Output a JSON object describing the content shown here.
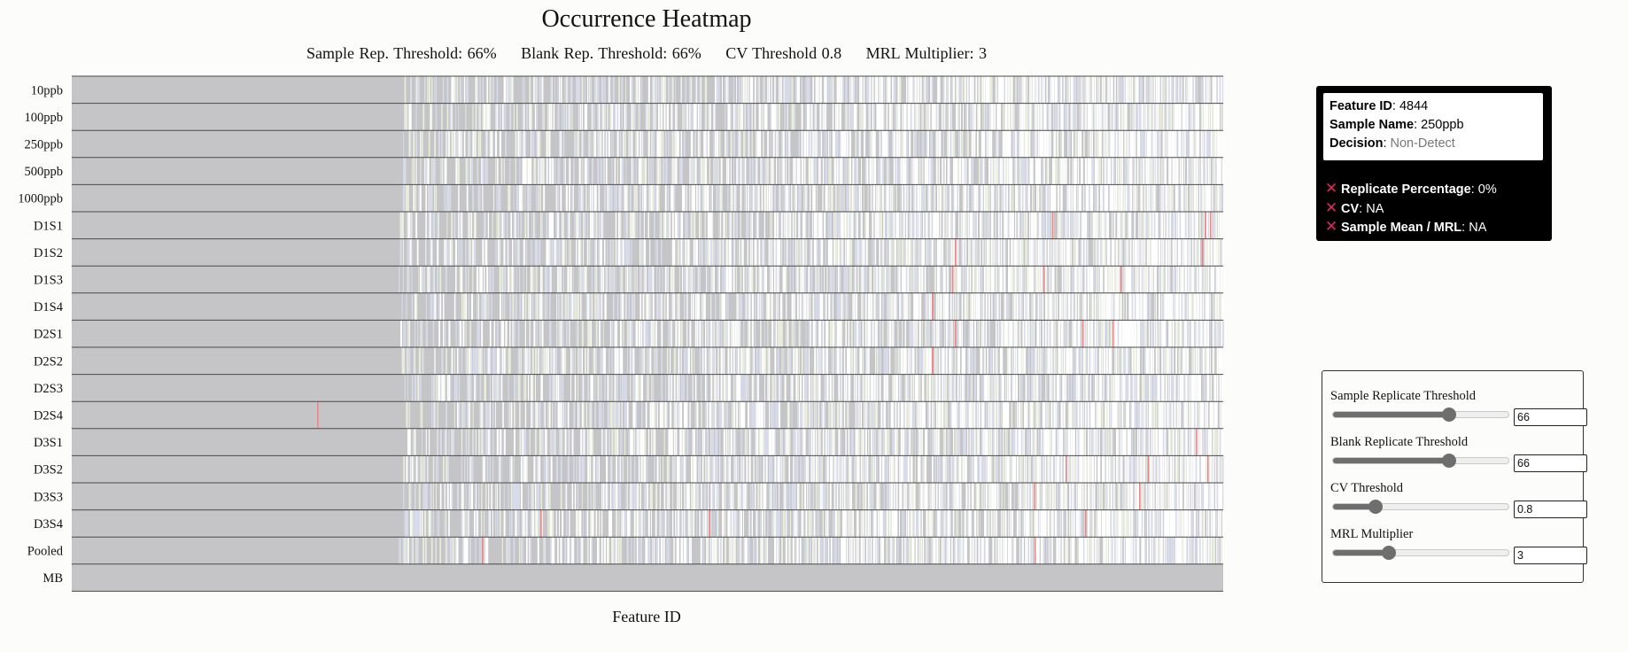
{
  "header": {
    "title": "Occurrence Heatmap",
    "subtitle_items": [
      "Sample Rep. Threshold: 66%",
      "Blank Rep. Threshold: 66%",
      "CV Threshold 0.8",
      "MRL Multiplier: 3"
    ]
  },
  "chart_data": {
    "type": "heatmap",
    "title": "Occurrence Heatmap",
    "xlabel": "Feature ID",
    "ylabel": "",
    "rows": [
      "10ppb",
      "100ppb",
      "250ppb",
      "500ppb",
      "1000ppb",
      "D1S1",
      "D1S2",
      "D1S3",
      "D1S4",
      "D2S1",
      "D2S2",
      "D2S3",
      "D2S4",
      "D3S1",
      "D3S2",
      "D3S3",
      "D3S4",
      "Pooled",
      "MB"
    ],
    "grid": true,
    "legend": "none",
    "colors": {
      "non_detect": "#c5c5c7",
      "detect_pass": "#ffffff",
      "ambiguous_blue": "#d8dcea",
      "ambiguous_green": "#e9eddc",
      "fail_cv": "#f48080",
      "row_divider": "#4a4a4a"
    }
  },
  "tooltip": {
    "feature_id_label": "Feature ID",
    "feature_id_value": "4844",
    "sample_name_label": "Sample Name",
    "sample_name_value": "250ppb",
    "decision_label": "Decision",
    "decision_value": "Non-Detect",
    "icon": "x-mark-icon",
    "icon_color": "#e0285a",
    "checks": [
      {
        "label": "Replicate Percentage",
        "value": "0%"
      },
      {
        "label": "CV",
        "value": "NA"
      },
      {
        "label": "Sample Mean / MRL",
        "value": "NA"
      }
    ]
  },
  "controls": [
    {
      "label": "Sample Replicate Threshold",
      "value": "66",
      "fraction": 0.66
    },
    {
      "label": "Blank Replicate Threshold",
      "value": "66",
      "fraction": 0.66
    },
    {
      "label": "CV Threshold",
      "value": "0.8",
      "fraction": 0.24
    },
    {
      "label": "MRL Multiplier",
      "value": "3",
      "fraction": 0.32
    }
  ]
}
